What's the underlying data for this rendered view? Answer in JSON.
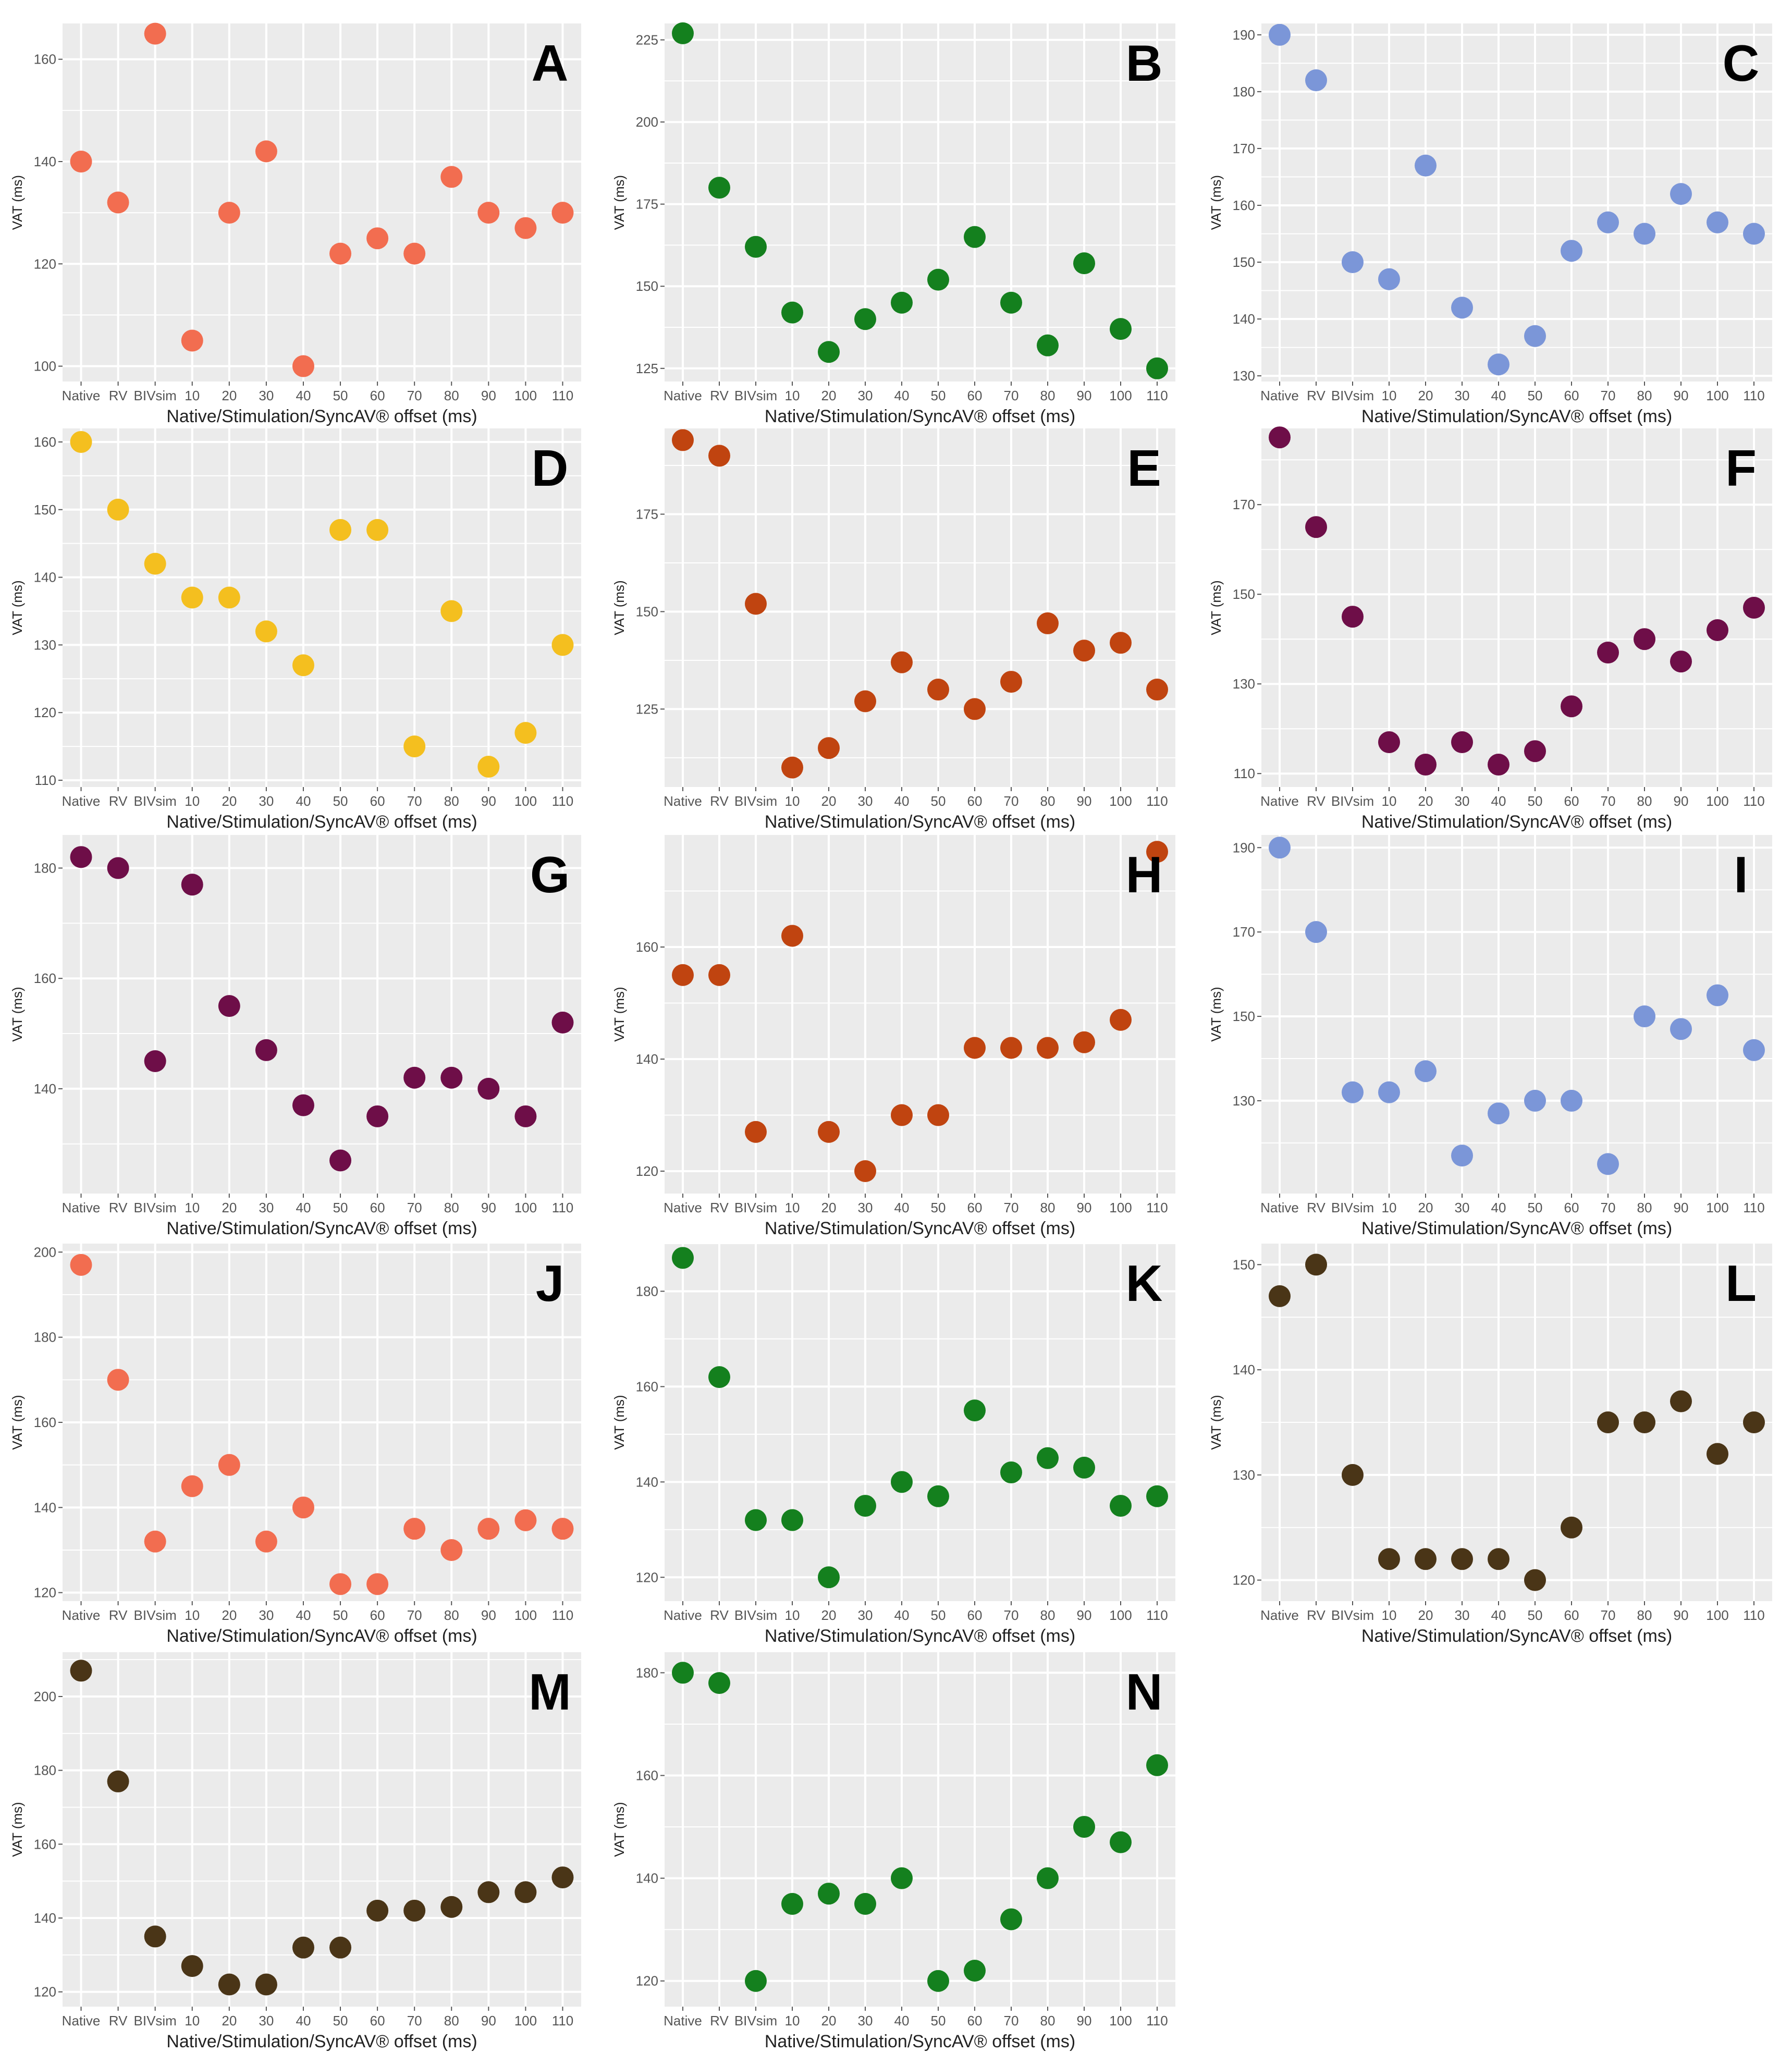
{
  "shared": {
    "categories": [
      "Native",
      "RV",
      "BIVsim",
      "10",
      "20",
      "30",
      "40",
      "50",
      "60",
      "70",
      "80",
      "90",
      "100",
      "110"
    ],
    "xlabel": "Native/Stimulation/SyncAV® offset (ms)",
    "ylabel": "VAT (ms)",
    "grid": true,
    "panel_background": "#ebebeb",
    "gridline_color": "#ffffff"
  },
  "colors": {
    "salmon": "#f26d50",
    "green": "#14801e",
    "blue": "#7b96d8",
    "yellow": "#f4bf1f",
    "rust": "#c04410",
    "plum": "#6e0e48",
    "brown": "#4a3517"
  },
  "chart_data": [
    {
      "label": "A",
      "type": "scatter",
      "color": "#f26d50",
      "ylim": [
        97,
        167
      ],
      "yticks": [
        100,
        120,
        140,
        160
      ],
      "values": [
        140,
        132,
        165,
        105,
        130,
        142,
        100,
        122,
        125,
        122,
        137,
        130,
        127,
        130
      ]
    },
    {
      "label": "B",
      "type": "scatter",
      "color": "#14801e",
      "ylim": [
        121,
        230
      ],
      "yticks": [
        125,
        150,
        175,
        200,
        225
      ],
      "values": [
        227,
        180,
        162,
        142,
        130,
        140,
        145,
        152,
        165,
        145,
        132,
        157,
        137,
        125
      ]
    },
    {
      "label": "C",
      "type": "scatter",
      "color": "#7b96d8",
      "ylim": [
        129,
        192
      ],
      "yticks": [
        130,
        140,
        150,
        160,
        170,
        180,
        190
      ],
      "values": [
        190,
        182,
        150,
        147,
        167,
        142,
        132,
        137,
        152,
        157,
        155,
        162,
        157,
        155
      ]
    },
    {
      "label": "D",
      "type": "scatter",
      "color": "#f4bf1f",
      "ylim": [
        109,
        162
      ],
      "yticks": [
        110,
        120,
        130,
        140,
        150,
        160
      ],
      "values": [
        160,
        150,
        142,
        137,
        137,
        132,
        127,
        147,
        147,
        115,
        135,
        112,
        117,
        130
      ]
    },
    {
      "label": "E",
      "type": "scatter",
      "color": "#c04410",
      "ylim": [
        105,
        197
      ],
      "yticks": [
        125,
        150,
        175
      ],
      "values": [
        194,
        190,
        152,
        110,
        115,
        127,
        137,
        130,
        125,
        132,
        147,
        140,
        142,
        130
      ]
    },
    {
      "label": "F",
      "type": "scatter",
      "color": "#6e0e48",
      "ylim": [
        107,
        187
      ],
      "yticks": [
        110,
        130,
        150,
        170
      ],
      "values": [
        185,
        165,
        145,
        117,
        112,
        117,
        112,
        115,
        125,
        137,
        140,
        135,
        142,
        147
      ]
    },
    {
      "label": "G",
      "type": "scatter",
      "color": "#6e0e48",
      "ylim": [
        121,
        186
      ],
      "yticks": [
        140,
        160,
        180
      ],
      "values": [
        182,
        180,
        145,
        177,
        155,
        147,
        137,
        127,
        135,
        142,
        142,
        140,
        135,
        152
      ]
    },
    {
      "label": "H",
      "type": "scatter",
      "color": "#c04410",
      "ylim": [
        116,
        180
      ],
      "yticks": [
        120,
        140,
        160
      ],
      "values": [
        155,
        155,
        127,
        162,
        127,
        120,
        130,
        130,
        142,
        142,
        142,
        143,
        147,
        177
      ]
    },
    {
      "label": "I",
      "type": "scatter",
      "color": "#7b96d8",
      "ylim": [
        108,
        193
      ],
      "yticks": [
        130,
        150,
        170,
        190
      ],
      "values": [
        190,
        170,
        132,
        132,
        137,
        117,
        127,
        130,
        130,
        115,
        150,
        147,
        155,
        142
      ]
    },
    {
      "label": "J",
      "type": "scatter",
      "color": "#f26d50",
      "ylim": [
        118,
        202
      ],
      "yticks": [
        120,
        140,
        160,
        180,
        200
      ],
      "values": [
        197,
        170,
        132,
        145,
        150,
        132,
        140,
        122,
        122,
        135,
        130,
        135,
        137,
        135
      ]
    },
    {
      "label": "K",
      "type": "scatter",
      "color": "#14801e",
      "ylim": [
        115,
        190
      ],
      "yticks": [
        120,
        140,
        160,
        180
      ],
      "values": [
        187,
        162,
        132,
        132,
        120,
        135,
        140,
        137,
        155,
        142,
        145,
        143,
        135,
        137
      ]
    },
    {
      "label": "L",
      "type": "scatter",
      "color": "#4a3517",
      "ylim": [
        118,
        152
      ],
      "yticks": [
        120,
        130,
        140,
        150
      ],
      "values": [
        147,
        150,
        130,
        122,
        122,
        122,
        122,
        120,
        125,
        135,
        135,
        137,
        132,
        135
      ]
    },
    {
      "label": "M",
      "type": "scatter",
      "color": "#4a3517",
      "ylim": [
        116,
        212
      ],
      "yticks": [
        120,
        140,
        160,
        180,
        200
      ],
      "values": [
        207,
        177,
        135,
        127,
        122,
        122,
        132,
        132,
        142,
        142,
        143,
        147,
        147,
        151
      ]
    },
    {
      "label": "N",
      "type": "scatter",
      "color": "#14801e",
      "ylim": [
        115,
        184
      ],
      "yticks": [
        120,
        140,
        160,
        180
      ],
      "values": [
        180,
        178,
        120,
        135,
        137,
        135,
        140,
        120,
        122,
        132,
        140,
        150,
        147,
        162
      ]
    }
  ]
}
